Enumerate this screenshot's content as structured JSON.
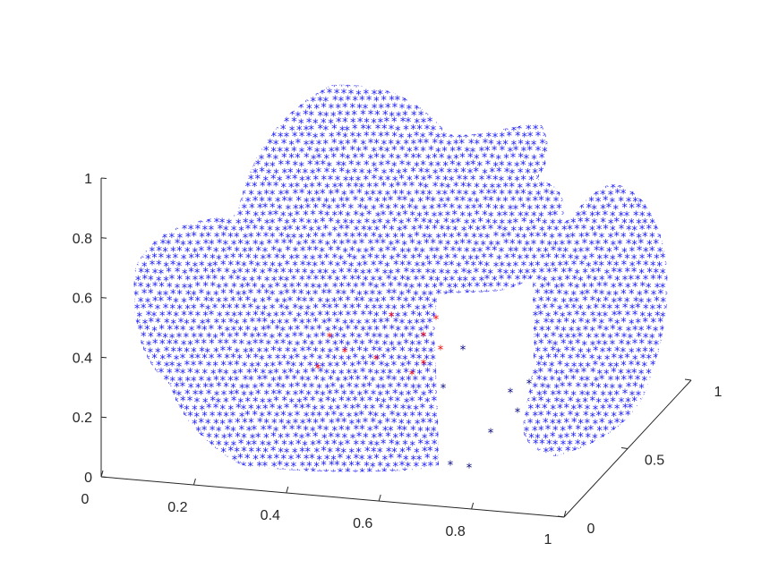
{
  "chart_data": {
    "type": "scatter",
    "title": "",
    "xlabel": "",
    "ylabel": "",
    "zlabel": "",
    "marker": "*",
    "xlim": [
      0,
      1
    ],
    "ylim": [
      0,
      1
    ],
    "zlim": [
      0,
      1
    ],
    "x_ticks": [
      "0",
      "0.2",
      "0.4",
      "0.6",
      "0.8",
      "1"
    ],
    "y_ticks": [
      "0",
      "0.5",
      "1"
    ],
    "z_ticks": [
      "0",
      "0.2",
      "0.4",
      "0.6",
      "0.8",
      "1"
    ],
    "grid": false,
    "colors": {
      "dense": "#1a1aff",
      "sparse": "#000080",
      "highlight": "#ff0000",
      "axis": "#262626"
    },
    "series": [
      {
        "color": "#1a1aff",
        "shape": "3D point cloud of a wavy bowl-like surface with a gap at x≈0.8",
        "points": [
          [
            0.05,
            0.1,
            0.66
          ],
          [
            0.05,
            0.3,
            0.72
          ],
          [
            0.05,
            0.5,
            0.76
          ],
          [
            0.08,
            0.15,
            0.55
          ],
          [
            0.1,
            0.1,
            0.4
          ],
          [
            0.12,
            0.2,
            0.3
          ],
          [
            0.15,
            0.3,
            0.35
          ],
          [
            0.2,
            0.1,
            0.28
          ],
          [
            0.25,
            0.4,
            0.32
          ],
          [
            0.3,
            0.2,
            0.25
          ],
          [
            0.35,
            0.5,
            0.4
          ],
          [
            0.4,
            0.3,
            0.2
          ],
          [
            0.45,
            0.6,
            0.5
          ],
          [
            0.5,
            0.4,
            0.6
          ],
          [
            0.55,
            0.7,
            0.85
          ],
          [
            0.6,
            0.8,
            0.9
          ],
          [
            0.35,
            0.8,
            0.95
          ],
          [
            0.4,
            0.9,
            0.97
          ],
          [
            0.5,
            0.95,
            0.98
          ],
          [
            0.6,
            0.6,
            0.7
          ],
          [
            0.65,
            0.5,
            0.55
          ],
          [
            0.7,
            0.4,
            0.45
          ],
          [
            0.75,
            0.9,
            0.8
          ],
          [
            0.85,
            0.2,
            0.4
          ],
          [
            0.9,
            0.3,
            0.5
          ],
          [
            0.95,
            0.5,
            0.6
          ],
          [
            0.92,
            0.7,
            0.7
          ],
          [
            0.88,
            0.6,
            0.3
          ],
          [
            0.93,
            0.1,
            0.2
          ],
          [
            0.97,
            0.4,
            0.45
          ]
        ]
      },
      {
        "color": "#ff0000",
        "points": [
          [
            0.48,
            0.55,
            0.42
          ],
          [
            0.55,
            0.55,
            0.47
          ],
          [
            0.62,
            0.6,
            0.4
          ],
          [
            0.5,
            0.45,
            0.38
          ],
          [
            0.6,
            0.5,
            0.36
          ],
          [
            0.58,
            0.65,
            0.45
          ]
        ]
      }
    ]
  }
}
